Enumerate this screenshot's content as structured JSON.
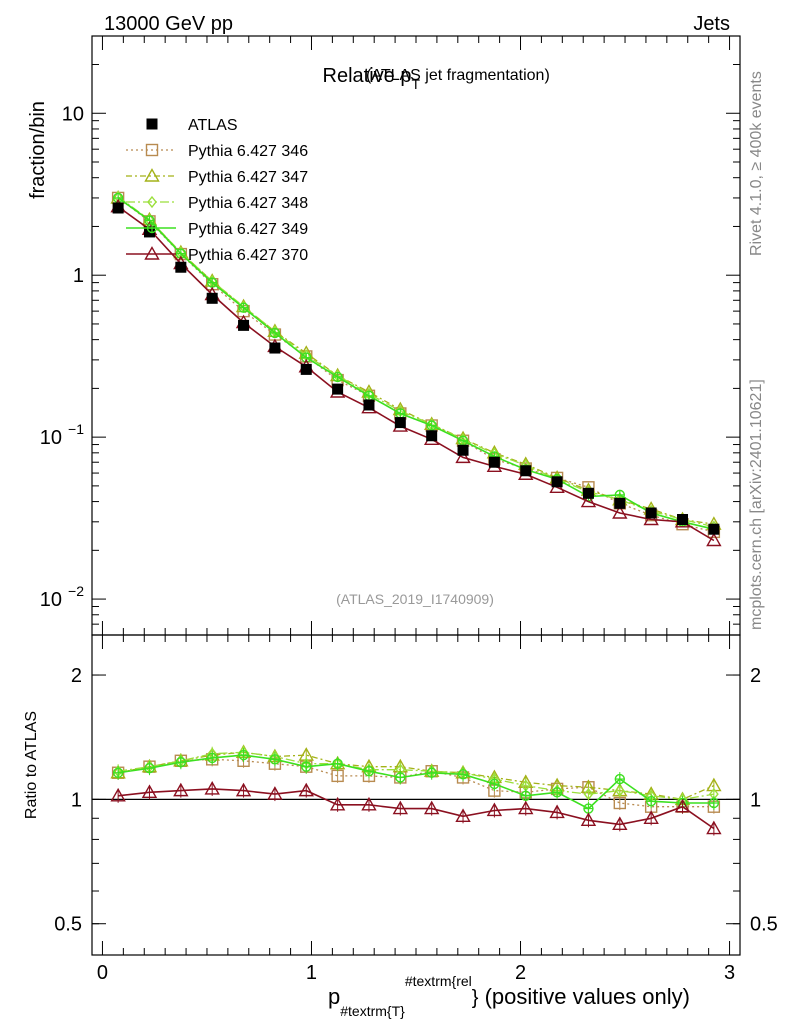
{
  "header": {
    "left": "13000 GeV pp",
    "right": "Jets"
  },
  "side_labels": {
    "rivet": "Rivet 4.1.0, ≥ 400k events",
    "mcplots": "mcplots.cern.ch [arXiv:2401.10621]"
  },
  "colors": {
    "ATLAS": "#000000",
    "p346": "#b88b50",
    "p347": "#a4b218",
    "p348": "#9adf3a",
    "p349": "#3de020",
    "p370": "#8b1020",
    "reference": "#999999"
  },
  "chart_data": [
    {
      "type": "line",
      "panel": "main",
      "title": "Relative p",
      "title_sub": "T",
      "title_extra": "(ATLAS jet fragmentation)",
      "ylabel": "fraction/bin",
      "yscale": "log",
      "ylim": [
        0.006,
        30
      ],
      "xlim": [
        -0.05,
        3.05
      ],
      "y_ticks": [
        {
          "value": 10,
          "mantissa": "10",
          "exp": ""
        },
        {
          "value": 1,
          "mantissa": "1",
          "exp": ""
        },
        {
          "value": 0.1,
          "mantissa": "10",
          "exp": "−1"
        },
        {
          "value": 0.01,
          "mantissa": "10",
          "exp": "−2"
        }
      ],
      "reference_label": "(ATLAS_2019_I1740909)",
      "x": [
        0.075,
        0.225,
        0.375,
        0.525,
        0.675,
        0.825,
        0.975,
        1.125,
        1.275,
        1.425,
        1.575,
        1.725,
        1.875,
        2.025,
        2.175,
        2.325,
        2.475,
        2.625,
        2.775,
        2.925
      ],
      "series": [
        {
          "name": "ATLAS",
          "key": "ATLAS",
          "marker": "filled-square",
          "line": "none",
          "values": [
            2.6,
            1.85,
            1.12,
            0.72,
            0.49,
            0.355,
            0.262,
            0.198,
            0.158,
            0.123,
            0.102,
            0.083,
            0.07,
            0.062,
            0.053,
            0.045,
            0.039,
            0.034,
            0.031,
            0.027
          ]
        },
        {
          "name": "Pythia 6.427 346",
          "key": "p346",
          "marker": "open-square",
          "line": "dotted",
          "values": [
            3.0,
            2.15,
            1.35,
            0.88,
            0.6,
            0.43,
            0.315,
            0.225,
            0.18,
            0.14,
            0.118,
            0.095,
            0.073,
            0.064,
            0.056,
            0.049,
            0.039,
            0.033,
            0.029,
            0.026
          ]
        },
        {
          "name": "Pythia 6.427 347",
          "key": "p347",
          "marker": "open-triangle",
          "line": "dashdot",
          "values": [
            3.0,
            2.2,
            1.38,
            0.92,
            0.64,
            0.45,
            0.33,
            0.24,
            0.19,
            0.148,
            0.12,
            0.098,
            0.08,
            0.068,
            0.056,
            0.047,
            0.041,
            0.036,
            0.031,
            0.029
          ]
        },
        {
          "name": "Pythia 6.427 348",
          "key": "p348",
          "marker": "open-diamond",
          "line": "dashdot-long",
          "values": [
            3.05,
            2.2,
            1.38,
            0.92,
            0.64,
            0.45,
            0.32,
            0.24,
            0.185,
            0.145,
            0.12,
            0.097,
            0.079,
            0.067,
            0.055,
            0.046,
            0.041,
            0.035,
            0.031,
            0.028
          ]
        },
        {
          "name": "Pythia 6.427 349",
          "key": "p349",
          "marker": "open-circle-cross",
          "line": "solid",
          "values": [
            3.0,
            2.18,
            1.36,
            0.9,
            0.63,
            0.44,
            0.31,
            0.235,
            0.18,
            0.14,
            0.118,
            0.095,
            0.076,
            0.063,
            0.055,
            0.043,
            0.044,
            0.034,
            0.03,
            0.027
          ]
        },
        {
          "name": "Pythia 6.427 370",
          "key": "p370",
          "marker": "open-triangle",
          "line": "solid",
          "values": [
            2.65,
            1.92,
            1.18,
            0.76,
            0.51,
            0.363,
            0.272,
            0.19,
            0.152,
            0.117,
            0.097,
            0.075,
            0.066,
            0.059,
            0.049,
            0.04,
            0.034,
            0.031,
            0.03,
            0.023
          ]
        }
      ]
    },
    {
      "type": "line",
      "panel": "ratio",
      "ylabel": "Ratio to ATLAS",
      "xlabel_main": "p",
      "xlabel_sub": "#textrm{T}",
      "xlabel_sup": "#textrm{rel",
      "xlabel_brace": "}",
      "xlabel_tail": " (positive values only)",
      "yscale": "log",
      "ylim": [
        0.42,
        2.5
      ],
      "xlim": [
        -0.05,
        3.05
      ],
      "y_ticks": [
        {
          "value": 2,
          "label": "2"
        },
        {
          "value": 1,
          "label": "1"
        },
        {
          "value": 0.5,
          "label": "0.5"
        }
      ],
      "x_ticks": [
        {
          "value": 0,
          "label": "0"
        },
        {
          "value": 1,
          "label": "1"
        },
        {
          "value": 2,
          "label": "2"
        },
        {
          "value": 3,
          "label": "3"
        }
      ],
      "x": [
        0.075,
        0.225,
        0.375,
        0.525,
        0.675,
        0.825,
        0.975,
        1.125,
        1.275,
        1.425,
        1.575,
        1.725,
        1.875,
        2.025,
        2.175,
        2.325,
        2.475,
        2.625,
        2.775,
        2.925
      ],
      "series": [
        {
          "name": "Pythia 6.427 346",
          "key": "p346",
          "marker": "open-square",
          "line": "dotted",
          "values": [
            1.16,
            1.2,
            1.24,
            1.25,
            1.24,
            1.22,
            1.2,
            1.14,
            1.14,
            1.13,
            1.17,
            1.13,
            1.05,
            1.04,
            1.06,
            1.07,
            0.98,
            0.96,
            0.96,
            0.96
          ]
        },
        {
          "name": "Pythia 6.427 347",
          "key": "p347",
          "marker": "open-triangle",
          "line": "dashdot",
          "values": [
            1.16,
            1.2,
            1.24,
            1.28,
            1.3,
            1.27,
            1.28,
            1.22,
            1.2,
            1.2,
            1.17,
            1.16,
            1.13,
            1.1,
            1.08,
            1.07,
            1.05,
            1.03,
            1.0,
            1.08
          ]
        },
        {
          "name": "Pythia 6.427 348",
          "key": "p348",
          "marker": "open-diamond",
          "line": "dashdot-long",
          "values": [
            1.17,
            1.2,
            1.24,
            1.29,
            1.3,
            1.27,
            1.22,
            1.22,
            1.18,
            1.18,
            1.17,
            1.16,
            1.12,
            1.08,
            1.05,
            1.03,
            1.05,
            1.02,
            1.0,
            1.03
          ]
        },
        {
          "name": "Pythia 6.427 349",
          "key": "p349",
          "marker": "open-circle-cross",
          "line": "solid",
          "values": [
            1.16,
            1.19,
            1.23,
            1.26,
            1.28,
            1.25,
            1.2,
            1.22,
            1.17,
            1.13,
            1.16,
            1.15,
            1.09,
            1.02,
            1.04,
            0.95,
            1.12,
            0.99,
            0.98,
            0.98
          ]
        },
        {
          "name": "Pythia 6.427 370",
          "key": "p370",
          "marker": "open-triangle",
          "line": "solid",
          "values": [
            1.02,
            1.04,
            1.05,
            1.06,
            1.05,
            1.03,
            1.05,
            0.97,
            0.97,
            0.95,
            0.95,
            0.91,
            0.94,
            0.95,
            0.93,
            0.89,
            0.87,
            0.9,
            0.96,
            0.85
          ]
        }
      ]
    }
  ]
}
